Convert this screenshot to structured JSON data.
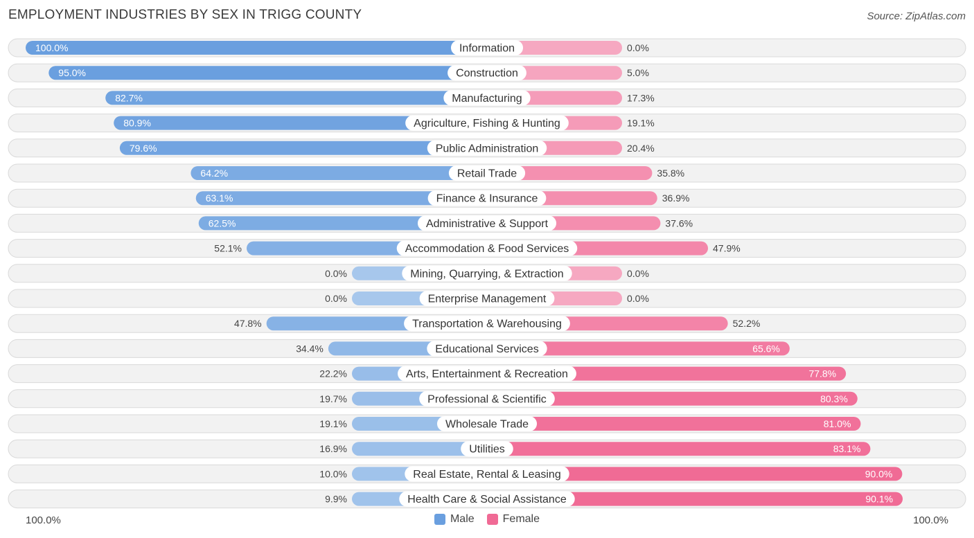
{
  "header": {
    "title": "EMPLOYMENT INDUSTRIES BY SEX IN TRIGG COUNTY",
    "source": "Source: ZipAtlas.com"
  },
  "colors": {
    "male_strong": "#6a9fdf",
    "male_light": "#a7c7ec",
    "female_strong": "#f06a95",
    "female_light": "#f6a8c1"
  },
  "legend": {
    "male_label": "Male",
    "female_label": "Female"
  },
  "axis": {
    "left_label": "100.0%",
    "right_label": "100.0%"
  },
  "chart_data": {
    "type": "bar",
    "orientation": "horizontal-diverging",
    "title": "EMPLOYMENT INDUSTRIES BY SEX IN TRIGG COUNTY",
    "xlabel": "",
    "ylabel": "",
    "xlim": [
      -100,
      100
    ],
    "categories": [
      "Information",
      "Construction",
      "Manufacturing",
      "Agriculture, Fishing & Hunting",
      "Public Administration",
      "Retail Trade",
      "Finance & Insurance",
      "Administrative & Support",
      "Accommodation & Food Services",
      "Mining, Quarrying, & Extraction",
      "Enterprise Management",
      "Transportation & Warehousing",
      "Educational Services",
      "Arts, Entertainment & Recreation",
      "Professional & Scientific",
      "Wholesale Trade",
      "Utilities",
      "Real Estate, Rental & Leasing",
      "Health Care & Social Assistance"
    ],
    "series": [
      {
        "name": "Male",
        "values": [
          100.0,
          95.0,
          82.7,
          80.9,
          79.6,
          64.2,
          63.1,
          62.5,
          52.1,
          0.0,
          0.0,
          47.8,
          34.4,
          22.2,
          19.7,
          19.1,
          16.9,
          10.0,
          9.9
        ],
        "labels": [
          "100.0%",
          "95.0%",
          "82.7%",
          "80.9%",
          "79.6%",
          "64.2%",
          "63.1%",
          "62.5%",
          "52.1%",
          "0.0%",
          "0.0%",
          "47.8%",
          "34.4%",
          "22.2%",
          "19.7%",
          "19.1%",
          "16.9%",
          "10.0%",
          "9.9%"
        ]
      },
      {
        "name": "Female",
        "values": [
          0.0,
          5.0,
          17.3,
          19.1,
          20.4,
          35.8,
          36.9,
          37.6,
          47.9,
          0.0,
          0.0,
          52.2,
          65.6,
          77.8,
          80.3,
          81.0,
          83.1,
          90.0,
          90.1
        ],
        "labels": [
          "0.0%",
          "5.0%",
          "17.3%",
          "19.1%",
          "20.4%",
          "35.8%",
          "36.9%",
          "37.6%",
          "47.9%",
          "0.0%",
          "0.0%",
          "52.2%",
          "65.6%",
          "77.8%",
          "80.3%",
          "81.0%",
          "83.1%",
          "90.0%",
          "90.1%"
        ]
      }
    ],
    "legend": [
      "Male",
      "Female"
    ],
    "legend_position": "bottom-center"
  }
}
